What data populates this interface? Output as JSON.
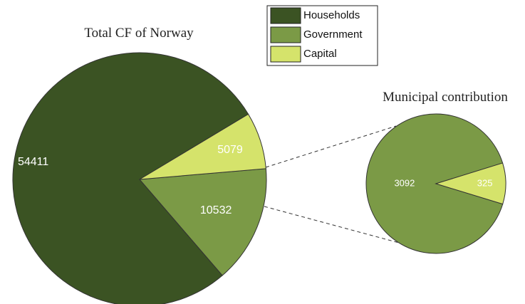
{
  "chart_data": [
    {
      "type": "pie",
      "title": "Total CF of Norway",
      "categories": [
        "Households",
        "Government",
        "Capital"
      ],
      "values": [
        54411,
        10532,
        5079
      ],
      "colors": [
        "#3b5323",
        "#7b9a46",
        "#d5e36b"
      ]
    },
    {
      "type": "pie",
      "title": "Municipal contribution",
      "values": [
        3092,
        325
      ],
      "colors": [
        "#7b9a46",
        "#d5e36b"
      ]
    }
  ]
}
